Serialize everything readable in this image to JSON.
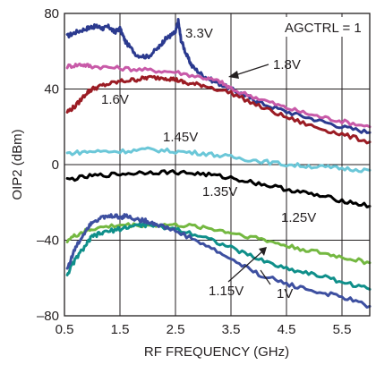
{
  "chart_data": {
    "type": "line",
    "title": "",
    "xlabel": "RF FREQUENCY (GHz)",
    "ylabel": "OIP2 (dBm)",
    "xlim": [
      0.5,
      6.0
    ],
    "ylim": [
      -80,
      80
    ],
    "x_ticks": [
      0.5,
      1.5,
      2.5,
      3.5,
      4.5,
      5.5
    ],
    "x_tick_labels": [
      "0.5",
      "1.5",
      "2.5",
      "3.5",
      "4.5",
      "5.5"
    ],
    "y_ticks": [
      -80,
      -40,
      0,
      40,
      80
    ],
    "y_tick_labels": [
      "–80",
      "–40",
      "0",
      "40",
      "80"
    ],
    "grid": true,
    "legend": "none (inline labels)",
    "inset_label": "AGCTRL = 1",
    "series": [
      {
        "name": "3.3V",
        "color": "#2b3a8f",
        "x": [
          0.55,
          0.7,
          0.9,
          1.0,
          1.1,
          1.2,
          1.3,
          1.4,
          1.5,
          1.6,
          1.8,
          2.0,
          2.2,
          2.3,
          2.4,
          2.5,
          2.55,
          2.6,
          2.7,
          2.8,
          3.0,
          3.2,
          3.5,
          3.8,
          4.0,
          4.5,
          5.0,
          5.5,
          6.0
        ],
        "y": [
          68,
          70,
          72,
          73,
          73,
          72,
          73,
          70,
          72,
          65,
          58,
          57,
          62,
          66,
          68,
          70,
          76,
          66,
          58,
          52,
          47,
          44,
          40,
          36,
          33,
          28,
          24,
          20,
          17
        ]
      },
      {
        "name": "1.8V",
        "color": "#c85aa8",
        "x": [
          0.55,
          0.8,
          1.0,
          1.5,
          2.0,
          2.5,
          3.0,
          3.3,
          3.5,
          4.0,
          4.5,
          5.0,
          5.5,
          6.0
        ],
        "y": [
          52,
          53,
          52,
          51,
          50,
          49,
          46,
          44,
          40,
          35,
          30,
          26,
          23,
          20
        ]
      },
      {
        "name": "1.6V",
        "color": "#9b1c24",
        "x": [
          0.55,
          0.7,
          0.9,
          1.0,
          1.2,
          1.5,
          1.8,
          2.0,
          2.3,
          2.5,
          2.7,
          3.0,
          3.5,
          4.0,
          4.5,
          5.0,
          5.5,
          6.0
        ],
        "y": [
          28,
          31,
          38,
          40,
          42,
          44,
          45,
          46,
          46,
          45,
          43,
          42,
          38,
          31,
          25,
          20,
          16,
          12
        ]
      },
      {
        "name": "1.45V",
        "color": "#6bc7d8",
        "x": [
          0.55,
          1.0,
          1.5,
          2.0,
          2.5,
          3.0,
          3.5,
          4.0,
          4.5,
          5.0,
          5.5,
          6.0
        ],
        "y": [
          6,
          7,
          7,
          8,
          7,
          6,
          4,
          2,
          0,
          -1,
          -2,
          -3
        ]
      },
      {
        "name": "1.35V",
        "color": "#000000",
        "x": [
          0.55,
          1.0,
          1.5,
          2.0,
          2.5,
          3.0,
          3.5,
          4.0,
          4.5,
          5.0,
          5.5,
          6.0
        ],
        "y": [
          -8,
          -6,
          -5,
          -4,
          -4,
          -5,
          -7,
          -10,
          -13,
          -16,
          -19,
          -22
        ]
      },
      {
        "name": "1.25V",
        "color": "#74b841",
        "x": [
          0.55,
          0.8,
          1.0,
          1.5,
          2.0,
          2.5,
          3.0,
          3.5,
          4.0,
          4.5,
          5.0,
          5.5,
          6.0
        ],
        "y": [
          -40,
          -36,
          -34,
          -32,
          -32,
          -32,
          -33,
          -36,
          -39,
          -43,
          -46,
          -49,
          -52
        ]
      },
      {
        "name": "1.15V",
        "color": "#0f8f8a",
        "x": [
          0.55,
          0.7,
          0.9,
          1.0,
          1.2,
          1.5,
          1.8,
          2.0,
          2.5,
          3.0,
          3.5,
          4.0,
          4.5,
          5.0,
          5.5,
          6.0
        ],
        "y": [
          -58,
          -50,
          -42,
          -38,
          -36,
          -34,
          -32,
          -32,
          -34,
          -38,
          -44,
          -50,
          -55,
          -58,
          -62,
          -66
        ]
      },
      {
        "name": "1V",
        "color": "#3d4fa0",
        "x": [
          0.55,
          0.7,
          0.9,
          1.0,
          1.2,
          1.4,
          1.5,
          1.6,
          1.8,
          2.0,
          2.2,
          2.5,
          3.0,
          3.5,
          4.0,
          4.5,
          5.0,
          5.5,
          6.0
        ],
        "y": [
          -55,
          -44,
          -34,
          -30,
          -28,
          -27,
          -28,
          -27,
          -29,
          -30,
          -32,
          -35,
          -42,
          -50,
          -58,
          -63,
          -67,
          -70,
          -75
        ]
      }
    ],
    "annotations": [
      {
        "text": "3.3V"
      },
      {
        "text": "1.8V"
      },
      {
        "text": "1.6V"
      },
      {
        "text": "1.45V"
      },
      {
        "text": "1.35V"
      },
      {
        "text": "1.25V"
      },
      {
        "text": "1.15V"
      },
      {
        "text": "1V"
      }
    ]
  }
}
